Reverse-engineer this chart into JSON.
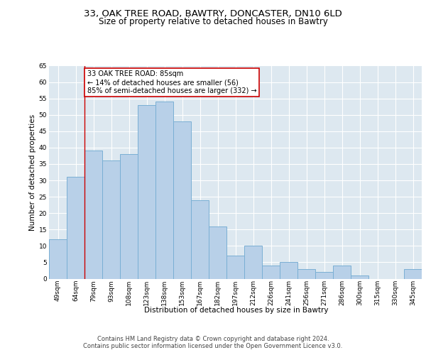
{
  "title1": "33, OAK TREE ROAD, BAWTRY, DONCASTER, DN10 6LD",
  "title2": "Size of property relative to detached houses in Bawtry",
  "xlabel": "Distribution of detached houses by size in Bawtry",
  "ylabel": "Number of detached properties",
  "categories": [
    "49sqm",
    "64sqm",
    "79sqm",
    "93sqm",
    "108sqm",
    "123sqm",
    "138sqm",
    "153sqm",
    "167sqm",
    "182sqm",
    "197sqm",
    "212sqm",
    "226sqm",
    "241sqm",
    "256sqm",
    "271sqm",
    "286sqm",
    "300sqm",
    "315sqm",
    "330sqm",
    "345sqm"
  ],
  "values": [
    12,
    31,
    39,
    36,
    38,
    53,
    54,
    48,
    24,
    16,
    7,
    10,
    4,
    5,
    3,
    2,
    4,
    1,
    0,
    0,
    3
  ],
  "bar_color": "#b8d0e8",
  "bar_edge_color": "#7aafd4",
  "vline_x": 1.5,
  "vline_color": "#cc0000",
  "annotation_text": "33 OAK TREE ROAD: 85sqm\n← 14% of detached houses are smaller (56)\n85% of semi-detached houses are larger (332) →",
  "annotation_box_color": "#ffffff",
  "annotation_box_edgecolor": "#cc0000",
  "ylim": [
    0,
    65
  ],
  "yticks": [
    0,
    5,
    10,
    15,
    20,
    25,
    30,
    35,
    40,
    45,
    50,
    55,
    60,
    65
  ],
  "footer1": "Contains HM Land Registry data © Crown copyright and database right 2024.",
  "footer2": "Contains public sector information licensed under the Open Government Licence v3.0.",
  "fig_bg_color": "#ffffff",
  "plot_bg_color": "#dde8f0",
  "grid_color": "#ffffff",
  "title_fontsize": 9.5,
  "subtitle_fontsize": 8.5,
  "axis_label_fontsize": 7.5,
  "tick_fontsize": 6.5,
  "footer_fontsize": 6,
  "annot_fontsize": 7
}
